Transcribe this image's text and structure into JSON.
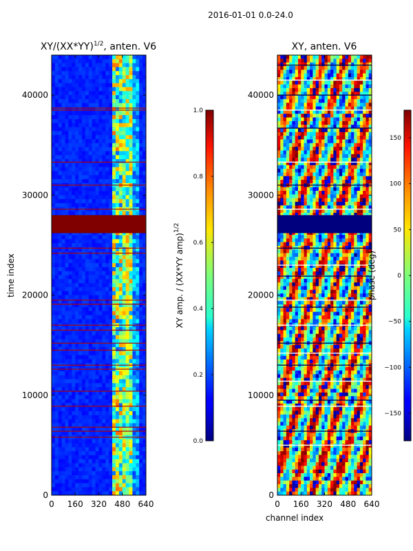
{
  "figure": {
    "suptitle": "2016-01-01 0.0-24.0"
  },
  "chart_data": [
    {
      "type": "heatmap",
      "id": "amp",
      "title_main": "XY/(XX*YY)",
      "title_sup": "1/2",
      "title_tail": ", anten. V6",
      "xlabel": "",
      "ylabel": "time index",
      "xlim": [
        0,
        640
      ],
      "ylim": [
        0,
        44000
      ],
      "xticks": [
        0,
        160,
        320,
        480,
        640
      ],
      "yticks": [
        0,
        10000,
        20000,
        30000,
        40000
      ],
      "xtick_labels": [
        "0",
        "160",
        "320",
        "480",
        "640"
      ],
      "ytick_labels": [
        "0",
        "10000",
        "20000",
        "30000",
        "40000"
      ],
      "colorbar": {
        "label_main": "XY amp. / (XX*YY amp)",
        "label_sup": "1/2",
        "range": [
          0.0,
          1.0
        ],
        "ticks": [
          0.0,
          0.2,
          0.4,
          0.6,
          0.8,
          1.0
        ],
        "tick_labels": [
          "0.0",
          "0.2",
          "0.4",
          "0.6",
          "0.8",
          "1.0"
        ],
        "colormap": "jet"
      },
      "saturated_band": [
        26200,
        28000
      ],
      "flag_rows": [
        38700,
        38500,
        33300,
        31000,
        28600,
        24700,
        24200,
        19500,
        19100,
        17000,
        16500,
        15200,
        14500,
        13000,
        12600,
        10400,
        8900,
        6800,
        6400,
        5800
      ]
    },
    {
      "type": "heatmap",
      "id": "phase",
      "title_main": "XY, anten. V6",
      "xlabel": "channel index",
      "ylabel": "",
      "xlim": [
        0,
        640
      ],
      "ylim": [
        0,
        44000
      ],
      "xticks": [
        0,
        160,
        320,
        480,
        640
      ],
      "yticks": [
        0,
        10000,
        20000,
        30000,
        40000
      ],
      "xtick_labels": [
        "0",
        "160",
        "320",
        "480",
        "640"
      ],
      "ytick_labels": [
        "0",
        "10000",
        "20000",
        "30000",
        "40000"
      ],
      "colorbar": {
        "label_main": "phase (deg)",
        "range": [
          -180,
          180
        ],
        "ticks": [
          -150,
          -100,
          -50,
          0,
          50,
          100,
          150
        ],
        "tick_labels": [
          "−150",
          "−100",
          "−50",
          "0",
          "50",
          "100",
          "150"
        ],
        "colormap": "jet"
      },
      "low_band": [
        26200,
        28000
      ],
      "flag_rows": [
        43000,
        41500,
        40000,
        38500,
        36700,
        33300,
        31000,
        28600,
        24700,
        23000,
        21900,
        19500,
        18800,
        17000,
        15200,
        14200,
        13000,
        11400,
        9500,
        8900,
        6400,
        5000
      ]
    }
  ]
}
